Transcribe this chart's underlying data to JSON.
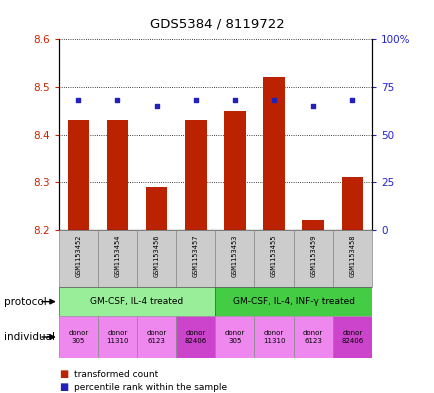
{
  "title": "GDS5384 / 8119722",
  "samples": [
    "GSM1153452",
    "GSM1153454",
    "GSM1153456",
    "GSM1153457",
    "GSM1153453",
    "GSM1153455",
    "GSM1153459",
    "GSM1153458"
  ],
  "transformed_counts": [
    8.43,
    8.43,
    8.29,
    8.43,
    8.45,
    8.52,
    8.22,
    8.31
  ],
  "percentile_ranks": [
    68,
    68,
    65,
    68,
    68,
    68,
    65,
    68
  ],
  "ylim_left": [
    8.2,
    8.6
  ],
  "ylim_right": [
    0,
    100
  ],
  "yticks_left": [
    8.2,
    8.3,
    8.4,
    8.5,
    8.6
  ],
  "yticks_right": [
    0,
    25,
    50,
    75,
    100
  ],
  "ytick_labels_right": [
    "0",
    "25",
    "50",
    "75",
    "100%"
  ],
  "bar_color": "#bb2200",
  "dot_color": "#2222bb",
  "bar_bottom": 8.2,
  "protocol_groups": [
    {
      "label": "GM-CSF, IL-4 treated",
      "start": 0,
      "end": 4,
      "color": "#aaeea a"
    },
    {
      "label": "GM-CSF, IL-4, INF-γ treated",
      "start": 4,
      "end": 8,
      "color": "#44cc44"
    }
  ],
  "individuals": [
    "donor\n305",
    "donor\n11310",
    "donor\n6123",
    "donor\n82406",
    "donor\n305",
    "donor\n11310",
    "donor\n6123",
    "donor\n82406"
  ],
  "individual_colors": [
    "#ee88ee",
    "#ee88ee",
    "#ee88ee",
    "#cc44cc",
    "#ee88ee",
    "#ee88ee",
    "#ee88ee",
    "#cc44cc"
  ],
  "protocol_label": "protocol",
  "individual_label": "individual",
  "legend_bar_label": "transformed count",
  "legend_dot_label": "percentile rank within the sample",
  "bg_color": "#ffffff",
  "tick_label_color_left": "#cc2200",
  "tick_label_color_right": "#2222cc",
  "sample_bg_color": "#cccccc",
  "proto_light_color": "#99ee99",
  "proto_dark_color": "#44cc44"
}
